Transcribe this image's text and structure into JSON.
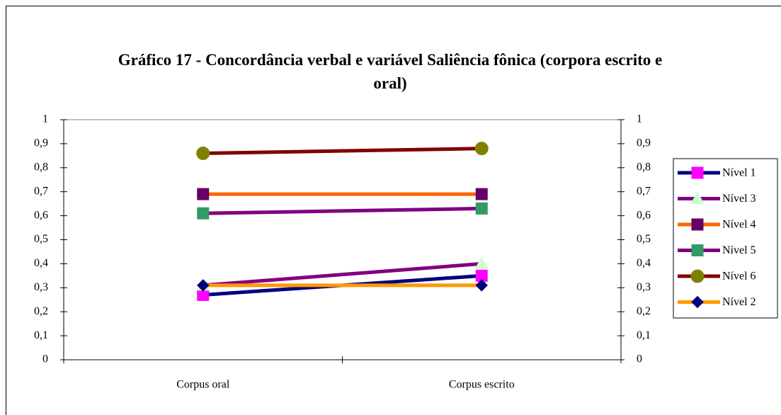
{
  "chart_data": {
    "type": "line",
    "title": "Gráfico 17 - Concordância verbal e variável Saliência fônica (corpora escrito e oral)",
    "categories": [
      "Corpus oral",
      "Corpus escrito"
    ],
    "series": [
      {
        "name": "Nível 1",
        "color": "#000080",
        "marker": "square",
        "marker_color": "#ff00ff",
        "values": [
          0.27,
          0.35
        ]
      },
      {
        "name": "Nível 3",
        "color": "#800080",
        "marker": "triangle",
        "marker_color": "#ccffcc",
        "values": [
          0.31,
          0.4
        ]
      },
      {
        "name": "Nível 4",
        "color": "#ff6600",
        "marker": "square",
        "marker_color": "#660066",
        "values": [
          0.69,
          0.69
        ]
      },
      {
        "name": "Nível 5",
        "color": "#800080",
        "marker": "square",
        "marker_color": "#339966",
        "values": [
          0.61,
          0.63
        ]
      },
      {
        "name": "Nível 6",
        "color": "#800000",
        "marker": "circle",
        "marker_color": "#808000",
        "values": [
          0.86,
          0.88
        ]
      },
      {
        "name": "Nível 2",
        "color": "#ff9900",
        "marker": "diamond",
        "marker_color": "#000080",
        "values": [
          0.31,
          0.31
        ]
      }
    ],
    "ylim": [
      0,
      1
    ],
    "yticks": [
      0,
      {
        "value": 0.1,
        "label": "0,1"
      },
      {
        "value": 0.2,
        "label": "0,2"
      },
      {
        "value": 0.3,
        "label": "0,3"
      },
      {
        "value": 0.4,
        "label": "0,4"
      },
      {
        "value": 0.5,
        "label": "0,5"
      },
      {
        "value": 0.6,
        "label": "0,6"
      },
      {
        "value": 0.7,
        "label": "0,7"
      },
      {
        "value": 0.8,
        "label": "0,8"
      },
      {
        "value": 0.9,
        "label": "0,9"
      },
      1
    ],
    "y2lim": [
      0,
      1
    ],
    "y2ticks": [
      0,
      {
        "value": 0.1,
        "label": "0,1"
      },
      {
        "value": 0.2,
        "label": "0,2"
      },
      {
        "value": 0.3,
        "label": "0,3"
      },
      {
        "value": 0.4,
        "label": "0,4"
      },
      {
        "value": 0.5,
        "label": "0,5"
      },
      {
        "value": 0.6,
        "label": "0,6"
      },
      {
        "value": 0.7,
        "label": "0,7"
      },
      {
        "value": 0.8,
        "label": "0,8"
      },
      {
        "value": 0.9,
        "label": "0,9"
      },
      1
    ],
    "legend": "right"
  }
}
